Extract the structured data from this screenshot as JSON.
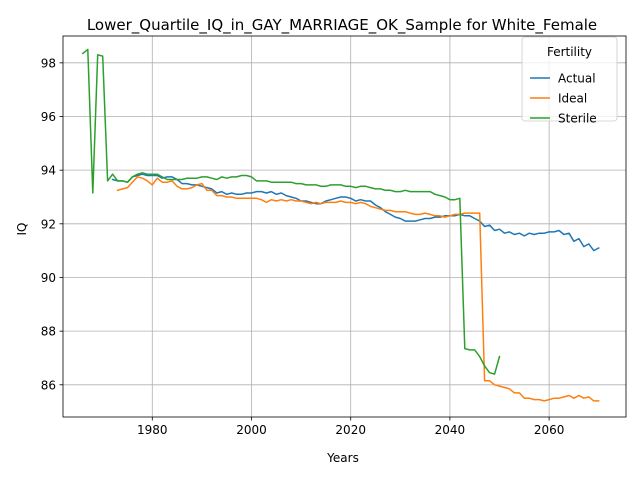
{
  "chart_data": {
    "type": "line",
    "title": "Lower_Quartile_IQ_in_GAY_MARRIAGE_OK_Sample for White_Female",
    "xlabel": "Years",
    "ylabel": "IQ",
    "xlim": [
      1962,
      2075.5
    ],
    "ylim": [
      84.8,
      99.0
    ],
    "xticks": [
      1980,
      2000,
      2020,
      2040,
      2060
    ],
    "yticks": [
      86,
      88,
      90,
      92,
      94,
      96,
      98
    ],
    "grid": true,
    "legend": {
      "title": "Fertility",
      "placement": "top-right"
    },
    "series": [
      {
        "name": "Actual",
        "color": "#1f77b4",
        "points": [
          [
            1972,
            93.65
          ],
          [
            1973,
            93.6
          ],
          [
            1974,
            93.6
          ],
          [
            1975,
            93.55
          ],
          [
            1976,
            93.75
          ],
          [
            1977,
            93.8
          ],
          [
            1978,
            93.85
          ],
          [
            1979,
            93.8
          ],
          [
            1980,
            93.8
          ],
          [
            1981,
            93.8
          ],
          [
            1982,
            93.7
          ],
          [
            1983,
            93.75
          ],
          [
            1984,
            93.75
          ],
          [
            1985,
            93.65
          ],
          [
            1986,
            93.5
          ],
          [
            1987,
            93.5
          ],
          [
            1988,
            93.45
          ],
          [
            1989,
            93.45
          ],
          [
            1990,
            93.4
          ],
          [
            1991,
            93.35
          ],
          [
            1992,
            93.3
          ],
          [
            1993,
            93.15
          ],
          [
            1994,
            93.2
          ],
          [
            1995,
            93.1
          ],
          [
            1996,
            93.15
          ],
          [
            1997,
            93.1
          ],
          [
            1998,
            93.1
          ],
          [
            1999,
            93.15
          ],
          [
            2000,
            93.15
          ],
          [
            2001,
            93.2
          ],
          [
            2002,
            93.2
          ],
          [
            2003,
            93.15
          ],
          [
            2004,
            93.2
          ],
          [
            2005,
            93.1
          ],
          [
            2006,
            93.15
          ],
          [
            2007,
            93.05
          ],
          [
            2008,
            93.0
          ],
          [
            2009,
            92.95
          ],
          [
            2010,
            92.85
          ],
          [
            2011,
            92.85
          ],
          [
            2012,
            92.8
          ],
          [
            2013,
            92.75
          ],
          [
            2014,
            92.75
          ],
          [
            2015,
            92.85
          ],
          [
            2016,
            92.9
          ],
          [
            2017,
            92.95
          ],
          [
            2018,
            93.0
          ],
          [
            2019,
            93.0
          ],
          [
            2020,
            92.95
          ],
          [
            2021,
            92.85
          ],
          [
            2022,
            92.9
          ],
          [
            2023,
            92.85
          ],
          [
            2024,
            92.85
          ],
          [
            2025,
            92.7
          ],
          [
            2026,
            92.6
          ],
          [
            2027,
            92.45
          ],
          [
            2028,
            92.35
          ],
          [
            2029,
            92.25
          ],
          [
            2030,
            92.2
          ],
          [
            2031,
            92.1
          ],
          [
            2032,
            92.1
          ],
          [
            2033,
            92.1
          ],
          [
            2034,
            92.15
          ],
          [
            2035,
            92.2
          ],
          [
            2036,
            92.2
          ],
          [
            2037,
            92.25
          ],
          [
            2038,
            92.25
          ],
          [
            2039,
            92.3
          ],
          [
            2040,
            92.3
          ],
          [
            2041,
            92.3
          ],
          [
            2042,
            92.35
          ],
          [
            2043,
            92.3
          ],
          [
            2044,
            92.3
          ],
          [
            2045,
            92.2
          ],
          [
            2046,
            92.1
          ],
          [
            2047,
            91.9
          ],
          [
            2048,
            91.95
          ],
          [
            2049,
            91.75
          ],
          [
            2050,
            91.8
          ],
          [
            2051,
            91.65
          ],
          [
            2052,
            91.7
          ],
          [
            2053,
            91.6
          ],
          [
            2054,
            91.65
          ],
          [
            2055,
            91.55
          ],
          [
            2056,
            91.65
          ],
          [
            2057,
            91.6
          ],
          [
            2058,
            91.65
          ],
          [
            2059,
            91.65
          ],
          [
            2060,
            91.7
          ],
          [
            2061,
            91.7
          ],
          [
            2062,
            91.75
          ],
          [
            2063,
            91.6
          ],
          [
            2064,
            91.65
          ],
          [
            2065,
            91.35
          ],
          [
            2066,
            91.45
          ],
          [
            2067,
            91.15
          ],
          [
            2068,
            91.25
          ],
          [
            2069,
            91.0
          ],
          [
            2070,
            91.1
          ]
        ]
      },
      {
        "name": "Ideal",
        "color": "#ff7f0e",
        "points": [
          [
            1973,
            93.25
          ],
          [
            1974,
            93.3
          ],
          [
            1975,
            93.35
          ],
          [
            1976,
            93.55
          ],
          [
            1977,
            93.75
          ],
          [
            1978,
            93.7
          ],
          [
            1979,
            93.6
          ],
          [
            1980,
            93.45
          ],
          [
            1981,
            93.7
          ],
          [
            1982,
            93.55
          ],
          [
            1983,
            93.55
          ],
          [
            1984,
            93.6
          ],
          [
            1985,
            93.4
          ],
          [
            1986,
            93.3
          ],
          [
            1987,
            93.3
          ],
          [
            1988,
            93.35
          ],
          [
            1989,
            93.45
          ],
          [
            1990,
            93.5
          ],
          [
            1991,
            93.25
          ],
          [
            1992,
            93.25
          ],
          [
            1993,
            93.05
          ],
          [
            1994,
            93.05
          ],
          [
            1995,
            93.0
          ],
          [
            1996,
            93.0
          ],
          [
            1997,
            92.95
          ],
          [
            1998,
            92.95
          ],
          [
            1999,
            92.95
          ],
          [
            2000,
            92.95
          ],
          [
            2001,
            92.95
          ],
          [
            2002,
            92.9
          ],
          [
            2003,
            92.8
          ],
          [
            2004,
            92.9
          ],
          [
            2005,
            92.85
          ],
          [
            2006,
            92.9
          ],
          [
            2007,
            92.85
          ],
          [
            2008,
            92.9
          ],
          [
            2009,
            92.85
          ],
          [
            2010,
            92.85
          ],
          [
            2011,
            92.8
          ],
          [
            2012,
            92.75
          ],
          [
            2013,
            92.8
          ],
          [
            2014,
            92.75
          ],
          [
            2015,
            92.8
          ],
          [
            2016,
            92.8
          ],
          [
            2017,
            92.8
          ],
          [
            2018,
            92.85
          ],
          [
            2019,
            92.8
          ],
          [
            2020,
            92.8
          ],
          [
            2021,
            92.75
          ],
          [
            2022,
            92.8
          ],
          [
            2023,
            92.75
          ],
          [
            2024,
            92.65
          ],
          [
            2025,
            92.6
          ],
          [
            2026,
            92.55
          ],
          [
            2027,
            92.5
          ],
          [
            2028,
            92.5
          ],
          [
            2029,
            92.45
          ],
          [
            2030,
            92.45
          ],
          [
            2031,
            92.45
          ],
          [
            2032,
            92.4
          ],
          [
            2033,
            92.35
          ],
          [
            2034,
            92.35
          ],
          [
            2035,
            92.4
          ],
          [
            2036,
            92.35
          ],
          [
            2037,
            92.3
          ],
          [
            2038,
            92.3
          ],
          [
            2039,
            92.25
          ],
          [
            2040,
            92.3
          ],
          [
            2041,
            92.35
          ],
          [
            2042,
            92.35
          ],
          [
            2043,
            92.4
          ],
          [
            2044,
            92.4
          ],
          [
            2045,
            92.4
          ],
          [
            2046,
            92.4
          ],
          [
            2047,
            86.15
          ],
          [
            2048,
            86.15
          ],
          [
            2049,
            86.0
          ],
          [
            2050,
            85.95
          ],
          [
            2051,
            85.9
          ],
          [
            2052,
            85.85
          ],
          [
            2053,
            85.7
          ],
          [
            2054,
            85.7
          ],
          [
            2055,
            85.5
          ],
          [
            2056,
            85.5
          ],
          [
            2057,
            85.45
          ],
          [
            2058,
            85.45
          ],
          [
            2059,
            85.4
          ],
          [
            2060,
            85.45
          ],
          [
            2061,
            85.5
          ],
          [
            2062,
            85.5
          ],
          [
            2063,
            85.55
          ],
          [
            2064,
            85.6
          ],
          [
            2065,
            85.5
          ],
          [
            2066,
            85.6
          ],
          [
            2067,
            85.5
          ],
          [
            2068,
            85.55
          ],
          [
            2069,
            85.4
          ],
          [
            2070,
            85.4
          ]
        ]
      },
      {
        "name": "Sterile",
        "color": "#2ca02c",
        "points": [
          [
            1966,
            98.35
          ],
          [
            1967,
            98.5
          ],
          [
            1968,
            93.15
          ],
          [
            1969,
            98.3
          ],
          [
            1970,
            98.25
          ],
          [
            1971,
            93.6
          ],
          [
            1972,
            93.85
          ],
          [
            1973,
            93.6
          ],
          [
            1974,
            93.6
          ],
          [
            1975,
            93.55
          ],
          [
            1976,
            93.75
          ],
          [
            1977,
            93.85
          ],
          [
            1978,
            93.9
          ],
          [
            1979,
            93.85
          ],
          [
            1980,
            93.85
          ],
          [
            1981,
            93.85
          ],
          [
            1982,
            93.75
          ],
          [
            1983,
            93.65
          ],
          [
            1984,
            93.65
          ],
          [
            1985,
            93.65
          ],
          [
            1986,
            93.65
          ],
          [
            1987,
            93.7
          ],
          [
            1988,
            93.7
          ],
          [
            1989,
            93.7
          ],
          [
            1990,
            93.75
          ],
          [
            1991,
            93.75
          ],
          [
            1992,
            93.7
          ],
          [
            1993,
            93.65
          ],
          [
            1994,
            93.75
          ],
          [
            1995,
            93.7
          ],
          [
            1996,
            93.75
          ],
          [
            1997,
            93.75
          ],
          [
            1998,
            93.8
          ],
          [
            1999,
            93.8
          ],
          [
            2000,
            93.75
          ],
          [
            2001,
            93.6
          ],
          [
            2002,
            93.6
          ],
          [
            2003,
            93.6
          ],
          [
            2004,
            93.55
          ],
          [
            2005,
            93.55
          ],
          [
            2006,
            93.55
          ],
          [
            2007,
            93.55
          ],
          [
            2008,
            93.55
          ],
          [
            2009,
            93.5
          ],
          [
            2010,
            93.5
          ],
          [
            2011,
            93.45
          ],
          [
            2012,
            93.45
          ],
          [
            2013,
            93.45
          ],
          [
            2014,
            93.4
          ],
          [
            2015,
            93.4
          ],
          [
            2016,
            93.45
          ],
          [
            2017,
            93.45
          ],
          [
            2018,
            93.45
          ],
          [
            2019,
            93.4
          ],
          [
            2020,
            93.4
          ],
          [
            2021,
            93.35
          ],
          [
            2022,
            93.4
          ],
          [
            2023,
            93.4
          ],
          [
            2024,
            93.35
          ],
          [
            2025,
            93.3
          ],
          [
            2026,
            93.3
          ],
          [
            2027,
            93.25
          ],
          [
            2028,
            93.25
          ],
          [
            2029,
            93.2
          ],
          [
            2030,
            93.2
          ],
          [
            2031,
            93.25
          ],
          [
            2032,
            93.2
          ],
          [
            2033,
            93.2
          ],
          [
            2034,
            93.2
          ],
          [
            2035,
            93.2
          ],
          [
            2036,
            93.2
          ],
          [
            2037,
            93.1
          ],
          [
            2038,
            93.05
          ],
          [
            2039,
            93.0
          ],
          [
            2040,
            92.9
          ],
          [
            2041,
            92.9
          ],
          [
            2042,
            92.95
          ],
          [
            2043,
            87.35
          ],
          [
            2044,
            87.3
          ],
          [
            2045,
            87.3
          ],
          [
            2046,
            87.05
          ],
          [
            2047,
            86.7
          ],
          [
            2048,
            86.45
          ],
          [
            2049,
            86.4
          ],
          [
            2050,
            87.05
          ]
        ]
      }
    ]
  }
}
